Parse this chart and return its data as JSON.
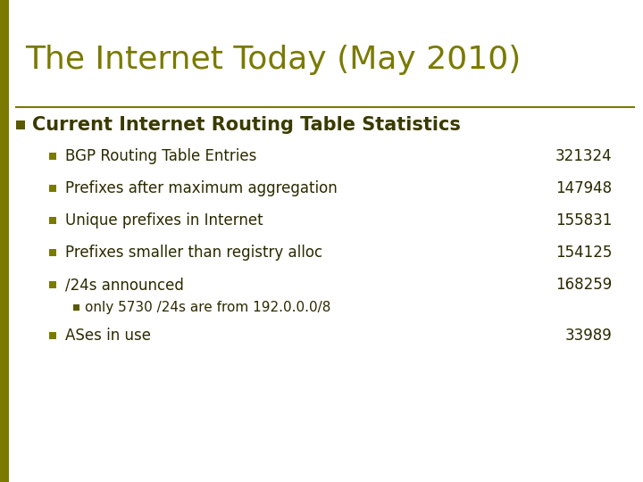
{
  "title": "The Internet Today (May 2010)",
  "title_color": "#7a7a00",
  "title_fontsize": 26,
  "background_color": "#ffffff",
  "section_header": "Current Internet Routing Table Statistics",
  "section_header_color": "#3a3a00",
  "section_header_fontsize": 15,
  "bullet_square_color": "#7a7a00",
  "bullet_p_color": "#5a5a00",
  "rows": [
    {
      "label": "BGP Routing Table Entries",
      "value": "321324"
    },
    {
      "label": "Prefixes after maximum aggregation",
      "value": "147948"
    },
    {
      "label": "Unique prefixes in Internet",
      "value": "155831"
    },
    {
      "label": "Prefixes smaller than registry alloc",
      "value": "154125"
    },
    {
      "label": "/24s announced",
      "value": "168259"
    }
  ],
  "sub_bullet_text": "only 5730 /24s are from 192.0.0.0/8",
  "last_row": {
    "label": "ASes in use",
    "value": "33989"
  },
  "left_stripe_color": "#7a7a00",
  "separator_color": "#7a7a00",
  "text_color": "#2a2a00",
  "row_fontsize": 12,
  "sub_fontsize": 11
}
